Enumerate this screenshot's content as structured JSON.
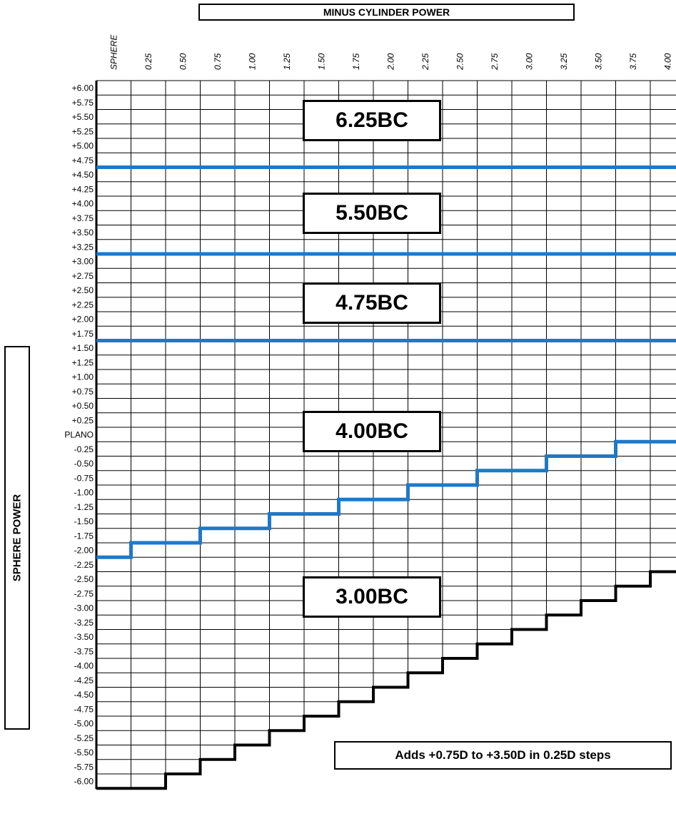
{
  "header": {
    "cylinder_title": "MINUS CYLINDER POWER"
  },
  "side": {
    "sphere_title": "SPHERE POWER"
  },
  "columns": [
    "SPHERE",
    "0.25",
    "0.50",
    "0.75",
    "1.00",
    "1.25",
    "1.50",
    "1.75",
    "2.00",
    "2.25",
    "2.50",
    "2.75",
    "3.00",
    "3.25",
    "3.50",
    "3.75",
    "4.00"
  ],
  "rows": [
    "+6.00",
    "+5.75",
    "+5.50",
    "+5.25",
    "+5.00",
    "+4.75",
    "+4.50",
    "+4.25",
    "+4.00",
    "+3.75",
    "+3.50",
    "+3.25",
    "+3.00",
    "+2.75",
    "+2.50",
    "+2.25",
    "+2.00",
    "+1.75",
    "+1.50",
    "+1.25",
    "+1.00",
    "+0.75",
    "+0.50",
    "+0.25",
    "PLANO",
    "-0.25",
    "-0.50",
    "-0.75",
    "-1.00",
    "-1.25",
    "-1.50",
    "-1.75",
    "-2.00",
    "-2.25",
    "-2.50",
    "-2.75",
    "-3.00",
    "-3.25",
    "-3.50",
    "-3.75",
    "-4.00",
    "-4.25",
    "-4.50",
    "-4.75",
    "-5.00",
    "-5.25",
    "-5.50",
    "-5.75",
    "-6.00"
  ],
  "zones": [
    {
      "label": "6.25BC",
      "from": "+6.00",
      "to": "+4.75"
    },
    {
      "label": "5.50BC",
      "from": "+4.50",
      "to": "+3.25"
    },
    {
      "label": "4.75BC",
      "from": "+3.00",
      "to": "+1.75"
    },
    {
      "label": "4.00BC",
      "from": "+1.50",
      "to": "lower boundary"
    },
    {
      "label": "3.00BC",
      "from": "lower boundary",
      "to": "-6.00"
    }
  ],
  "boundaries": {
    "color": "#1f78c8",
    "horizontal_after_rows": [
      "+4.75",
      "+3.25",
      "+1.75"
    ],
    "lower_steps": [
      {
        "after_row": "-2.00",
        "columns": [
          "SPHERE"
        ]
      },
      {
        "after_row": "-1.75",
        "columns": [
          "0.25",
          "0.50"
        ]
      },
      {
        "after_row": "-1.50",
        "columns": [
          "0.75",
          "1.00"
        ]
      },
      {
        "after_row": "-1.25",
        "columns": [
          "1.25",
          "1.50"
        ]
      },
      {
        "after_row": "-1.00",
        "columns": [
          "1.75",
          "2.00"
        ]
      },
      {
        "after_row": "-0.75",
        "columns": [
          "2.25",
          "2.50"
        ]
      },
      {
        "after_row": "-0.50",
        "columns": [
          "2.75",
          "3.00"
        ]
      },
      {
        "after_row": "-0.25",
        "columns": [
          "3.25",
          "3.50"
        ]
      },
      {
        "after_row": "PLANO",
        "columns": [
          "3.75",
          "4.00"
        ]
      }
    ]
  },
  "range_limit": {
    "color": "#000000",
    "last_row_per_column": [
      "-6.00",
      "-6.00",
      "-5.75",
      "-5.50",
      "-5.25",
      "-5.00",
      "-4.75",
      "-4.50",
      "-4.25",
      "-4.00",
      "-3.75",
      "-3.50",
      "-3.25",
      "-3.00",
      "-2.75",
      "-2.50",
      "-2.25"
    ]
  },
  "footer": {
    "adds_note": "Adds +0.75D to +3.50D in 0.25D steps"
  }
}
